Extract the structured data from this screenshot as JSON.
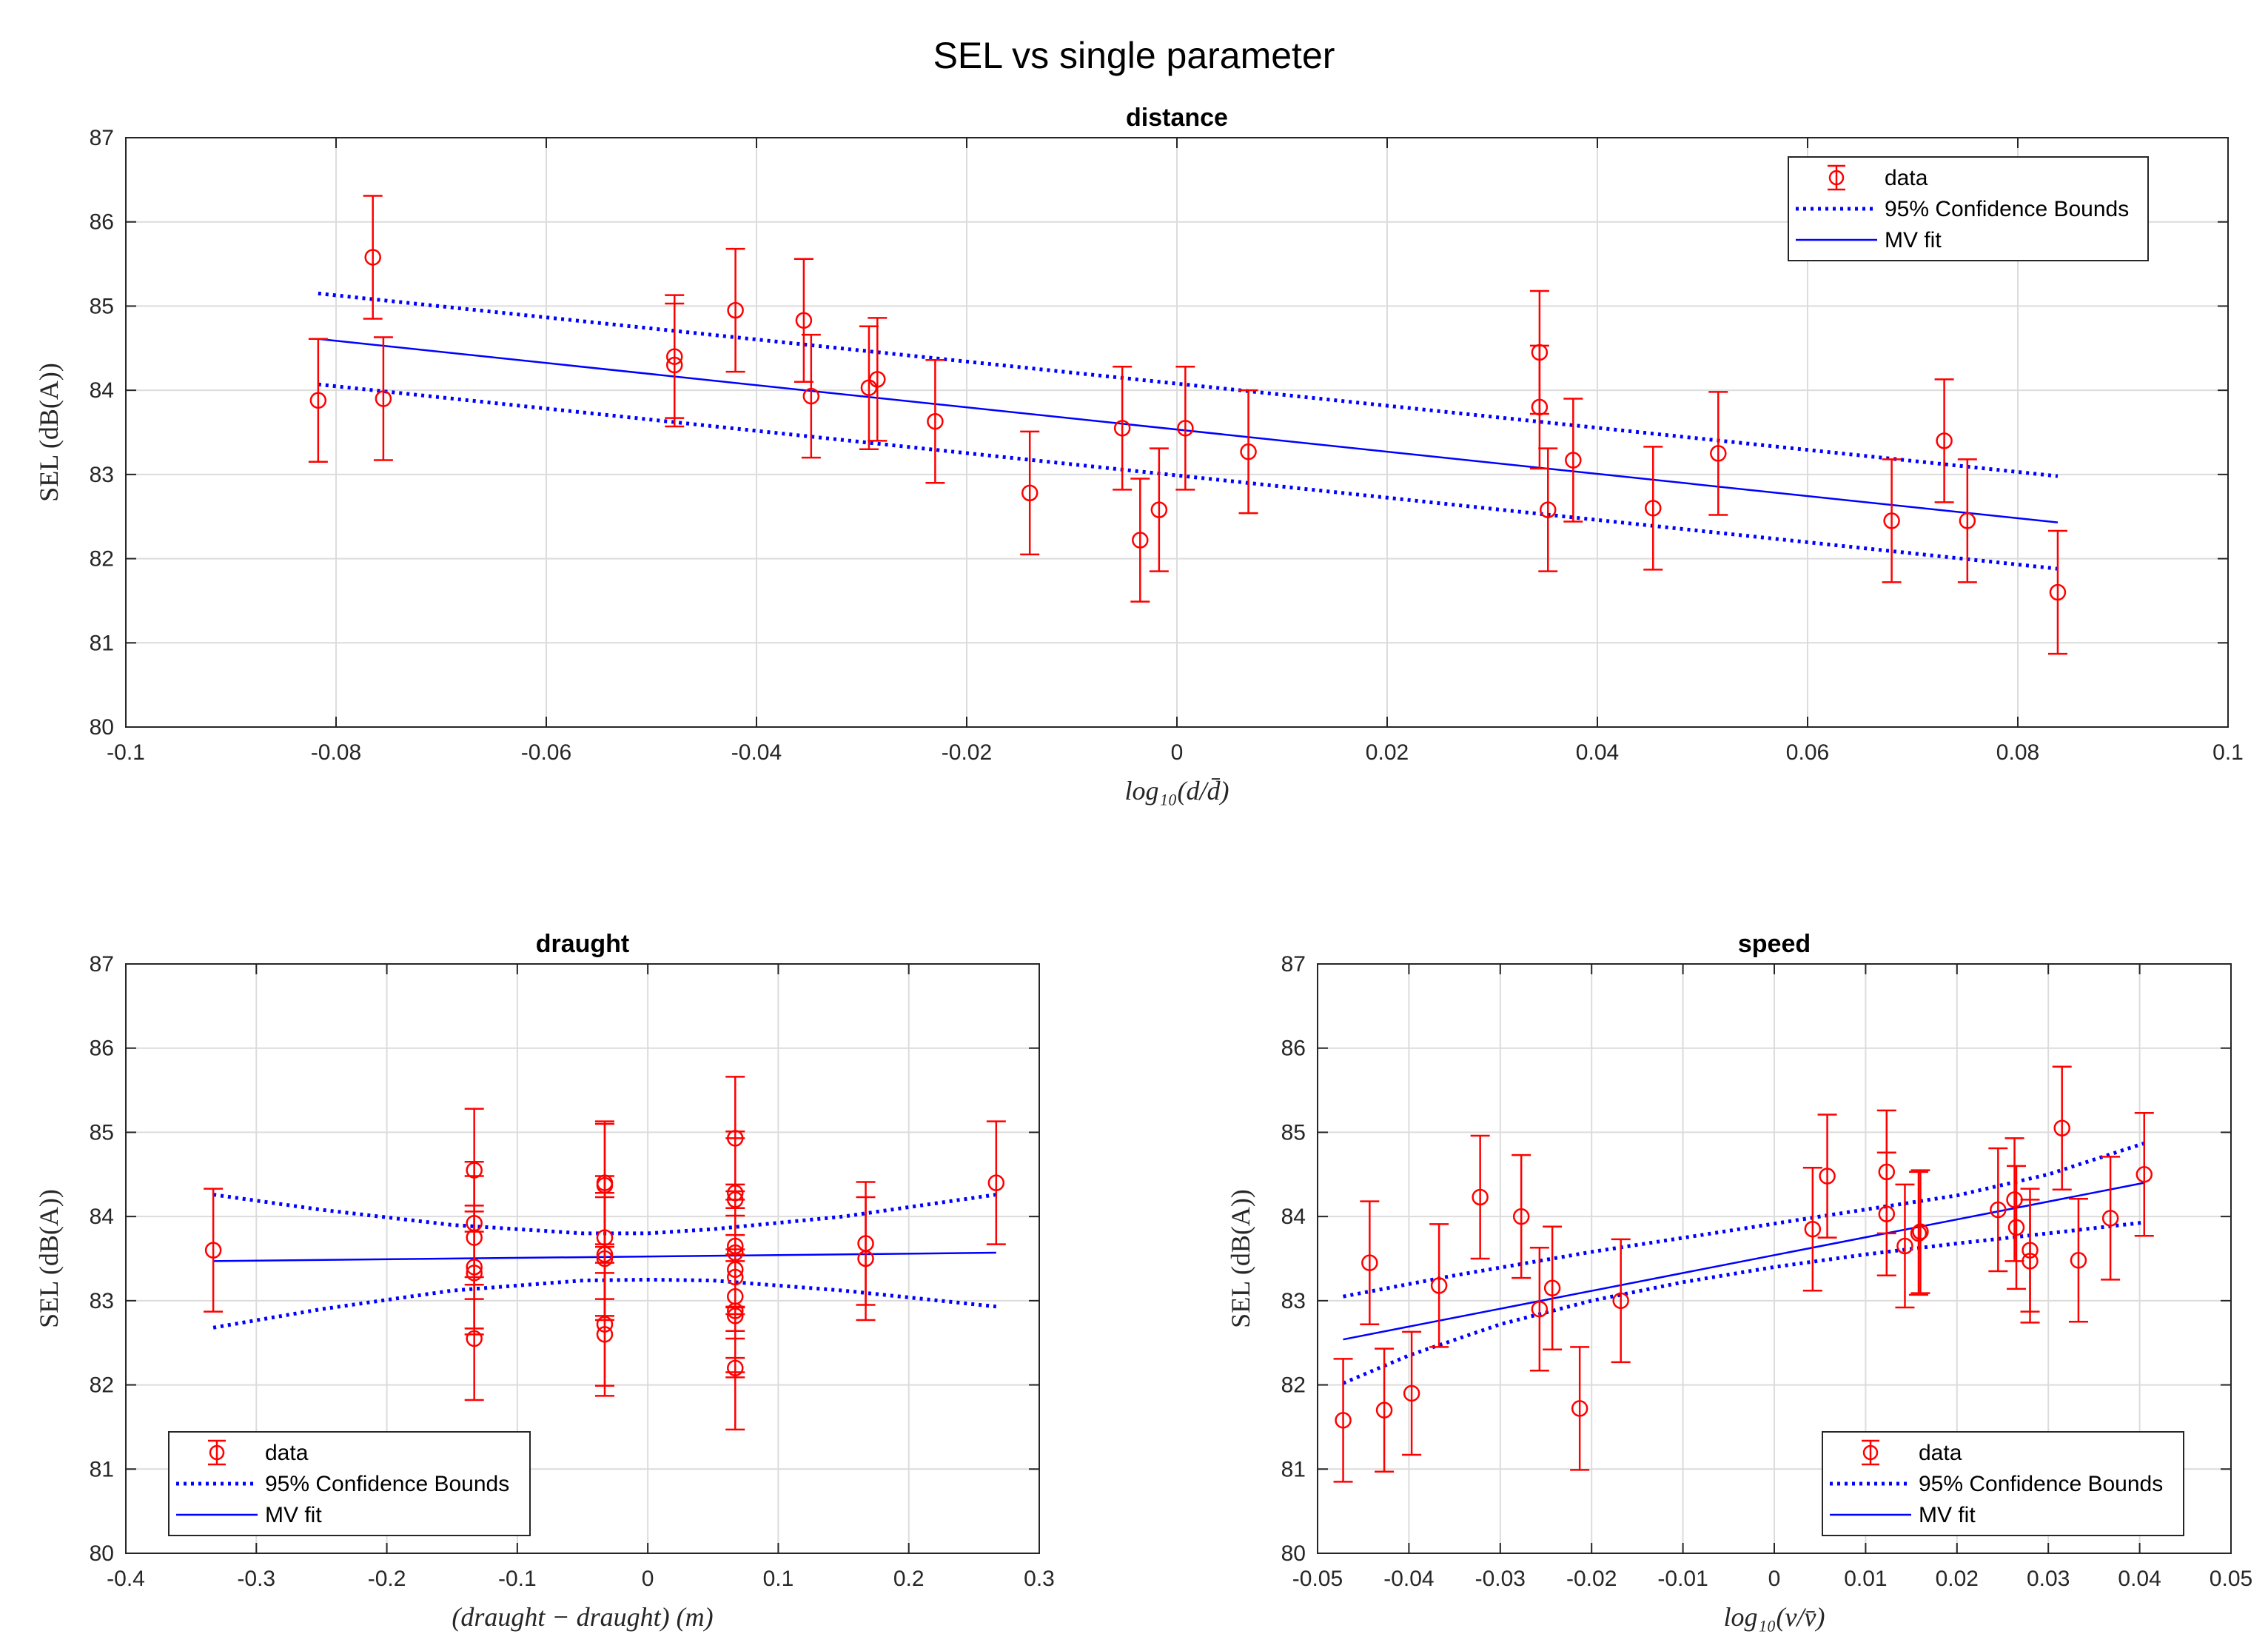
{
  "figure_title": "SEL vs single parameter",
  "legend_labels": {
    "data": "data",
    "bounds": "95% Confidence Bounds",
    "fit": "MV fit"
  },
  "colors": {
    "data": "#ff0000",
    "fit": "#0000ff",
    "grid": "#dcdcdc",
    "axis": "#262626"
  },
  "chart_data": [
    {
      "id": "distance",
      "type": "scatter",
      "title": "distance",
      "xlabel": "log₁₀(d/d̄)",
      "ylabel": "SEL (dB(A))",
      "xlim": [
        -0.1,
        0.1
      ],
      "ylim": [
        80,
        87
      ],
      "xticks": [
        "-0.1",
        "-0.08",
        "-0.06",
        "-0.04",
        "-0.02",
        "0",
        "0.02",
        "0.04",
        "0.06",
        "0.08",
        "0.1"
      ],
      "yticks": [
        "80",
        "81",
        "82",
        "83",
        "84",
        "85",
        "86",
        "87"
      ],
      "legend_location": "top-right",
      "errorbar_halfwidth": 0.73,
      "points": [
        [
          -0.0817,
          83.88
        ],
        [
          -0.0765,
          85.58
        ],
        [
          -0.0755,
          83.9
        ],
        [
          -0.0478,
          84.3
        ],
        [
          -0.0478,
          84.4
        ],
        [
          -0.042,
          84.95
        ],
        [
          -0.0355,
          84.83
        ],
        [
          -0.0348,
          83.93
        ],
        [
          -0.0293,
          84.03
        ],
        [
          -0.0285,
          84.13
        ],
        [
          -0.023,
          83.63
        ],
        [
          -0.014,
          82.78
        ],
        [
          -0.0052,
          83.55
        ],
        [
          -0.0035,
          82.22
        ],
        [
          -0.0017,
          82.58
        ],
        [
          0.0008,
          83.55
        ],
        [
          0.0068,
          83.27
        ],
        [
          0.0345,
          84.45
        ],
        [
          0.0345,
          83.8
        ],
        [
          0.0353,
          82.58
        ],
        [
          0.0377,
          83.17
        ],
        [
          0.0453,
          82.6
        ],
        [
          0.0515,
          83.25
        ],
        [
          0.068,
          82.45
        ],
        [
          0.073,
          83.4
        ],
        [
          0.0752,
          82.45
        ],
        [
          0.0838,
          81.6
        ]
      ],
      "fit": {
        "x": [
          -0.0817,
          0.0838
        ],
        "y": [
          84.61,
          82.43
        ]
      },
      "upper": {
        "x": [
          -0.0817,
          0.0838
        ],
        "y": [
          85.15,
          82.98
        ]
      },
      "lower": {
        "x": [
          -0.0817,
          0.0838
        ],
        "y": [
          84.07,
          81.88
        ]
      }
    },
    {
      "id": "draught",
      "type": "scatter",
      "title": "draught",
      "xlabel": "(draught − draught) (m)",
      "ylabel": "SEL (dB(A))",
      "xlim": [
        -0.4,
        0.3
      ],
      "ylim": [
        80,
        87
      ],
      "xticks": [
        "-0.4",
        "-0.3",
        "-0.2",
        "-0.1",
        "0",
        "0.1",
        "0.2",
        "0.3"
      ],
      "yticks": [
        "80",
        "81",
        "82",
        "83",
        "84",
        "85",
        "86",
        "87"
      ],
      "legend_location": "bottom-left",
      "errorbar_halfwidth": 0.73,
      "points": [
        [
          -0.333,
          83.6
        ],
        [
          -0.133,
          84.55
        ],
        [
          -0.133,
          83.92
        ],
        [
          -0.133,
          83.75
        ],
        [
          -0.133,
          83.4
        ],
        [
          -0.133,
          83.33
        ],
        [
          -0.133,
          82.55
        ],
        [
          -0.033,
          84.4
        ],
        [
          -0.033,
          84.37
        ],
        [
          -0.033,
          83.75
        ],
        [
          -0.033,
          83.55
        ],
        [
          -0.033,
          83.5
        ],
        [
          -0.033,
          82.72
        ],
        [
          -0.033,
          82.6
        ],
        [
          0.067,
          84.93
        ],
        [
          0.067,
          84.28
        ],
        [
          0.067,
          84.2
        ],
        [
          0.067,
          83.65
        ],
        [
          0.067,
          83.57
        ],
        [
          0.067,
          83.37
        ],
        [
          0.067,
          83.28
        ],
        [
          0.067,
          83.05
        ],
        [
          0.067,
          82.88
        ],
        [
          0.067,
          82.82
        ],
        [
          0.067,
          82.2
        ],
        [
          0.167,
          83.68
        ],
        [
          0.167,
          83.5
        ],
        [
          0.267,
          84.4
        ]
      ],
      "fit": {
        "x": [
          -0.333,
          0.267
        ],
        "y": [
          83.47,
          83.57
        ]
      },
      "upper": {
        "x": [
          -0.333,
          -0.25,
          -0.15,
          -0.05,
          0.0,
          0.05,
          0.15,
          0.267
        ],
        "y": [
          84.26,
          84.08,
          83.9,
          83.8,
          83.8,
          83.85,
          84.0,
          84.26
        ]
      },
      "lower": {
        "x": [
          -0.333,
          -0.25,
          -0.15,
          -0.05,
          0.0,
          0.05,
          0.15,
          0.267
        ],
        "y": [
          82.68,
          82.9,
          83.12,
          83.24,
          83.25,
          83.24,
          83.12,
          82.93
        ]
      }
    },
    {
      "id": "speed",
      "type": "scatter",
      "title": "speed",
      "xlabel": "log₁₀(v/v̄)",
      "ylabel": "SEL (dB(A))",
      "xlim": [
        -0.05,
        0.05
      ],
      "ylim": [
        80,
        87
      ],
      "xticks": [
        "-0.05",
        "-0.04",
        "-0.03",
        "-0.02",
        "-0.01",
        "0",
        "0.01",
        "0.02",
        "0.03",
        "0.04",
        "0.05"
      ],
      "yticks": [
        "80",
        "81",
        "82",
        "83",
        "84",
        "85",
        "86",
        "87"
      ],
      "legend_location": "bottom-right",
      "errorbar_halfwidth": 0.73,
      "points": [
        [
          -0.0472,
          81.58
        ],
        [
          -0.0443,
          83.45
        ],
        [
          -0.0427,
          81.7
        ],
        [
          -0.0397,
          81.9
        ],
        [
          -0.0367,
          83.18
        ],
        [
          -0.0322,
          84.23
        ],
        [
          -0.0277,
          84.0
        ],
        [
          -0.0257,
          82.9
        ],
        [
          -0.0243,
          83.15
        ],
        [
          -0.0213,
          81.72
        ],
        [
          -0.0168,
          83.0
        ],
        [
          0.0042,
          83.85
        ],
        [
          0.0058,
          84.48
        ],
        [
          0.0123,
          84.53
        ],
        [
          0.0123,
          84.03
        ],
        [
          0.0143,
          83.65
        ],
        [
          0.0158,
          83.8
        ],
        [
          0.016,
          83.82
        ],
        [
          0.0245,
          84.08
        ],
        [
          0.0263,
          84.2
        ],
        [
          0.0265,
          83.87
        ],
        [
          0.028,
          83.6
        ],
        [
          0.028,
          83.47
        ],
        [
          0.0315,
          85.05
        ],
        [
          0.0333,
          83.48
        ],
        [
          0.0368,
          83.98
        ],
        [
          0.0405,
          84.5
        ]
      ],
      "fit": {
        "x": [
          -0.0472,
          0.0405
        ],
        "y": [
          82.54,
          84.4
        ]
      },
      "upper": {
        "x": [
          -0.0472,
          -0.035,
          -0.02,
          -0.005,
          0.005,
          0.02,
          0.03,
          0.0405
        ],
        "y": [
          83.05,
          83.3,
          83.58,
          83.83,
          84.0,
          84.25,
          84.5,
          84.87
        ]
      },
      "lower": {
        "x": [
          -0.0472,
          -0.04,
          -0.03,
          -0.02,
          -0.01,
          0.0,
          0.01,
          0.02,
          0.03,
          0.0405
        ],
        "y": [
          82.02,
          82.35,
          82.72,
          83.0,
          83.22,
          83.4,
          83.55,
          83.68,
          83.8,
          83.93
        ]
      }
    }
  ]
}
